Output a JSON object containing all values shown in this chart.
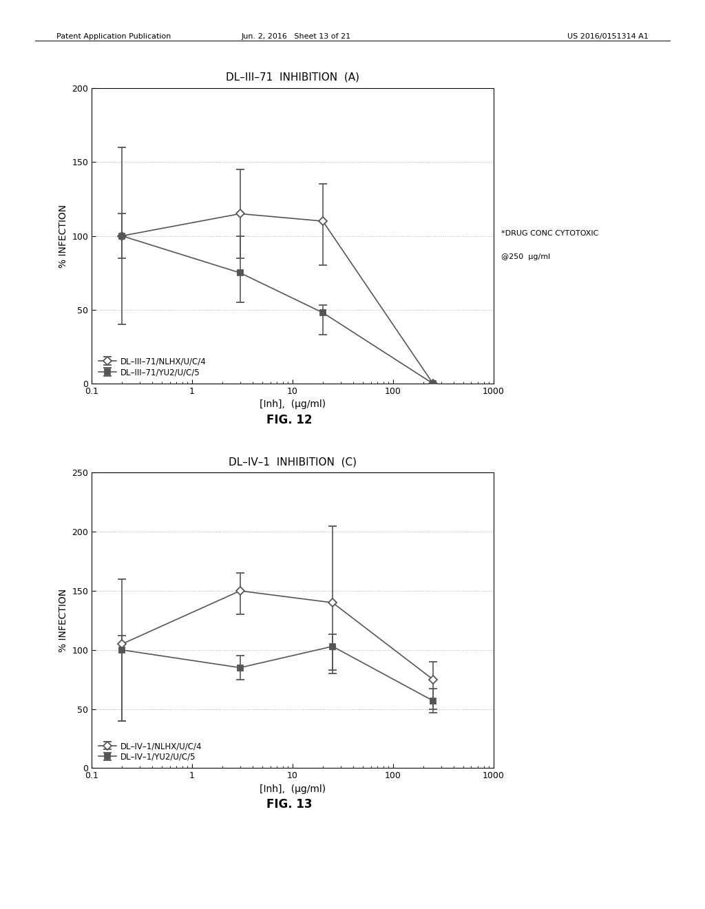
{
  "fig12": {
    "title": "DL–III–71  INHIBITION  (A)",
    "xlabel": "[Inh],  (μg/ml)",
    "ylabel": "% INFECTION",
    "ylim": [
      0,
      200
    ],
    "yticks": [
      0,
      50,
      100,
      150,
      200
    ],
    "xlim": [
      0.1,
      1000
    ],
    "series1": {
      "label": "DL–III–71/NLHX/U/C/4",
      "x": [
        0.2,
        3,
        20,
        250
      ],
      "y": [
        100,
        115,
        110,
        0
      ],
      "yerr_low": [
        15,
        30,
        30,
        0
      ],
      "yerr_high": [
        60,
        30,
        25,
        0
      ],
      "marker": "D",
      "markersize": 6
    },
    "series2": {
      "label": "DL–III–71/YU2/U/C/5",
      "x": [
        0.2,
        3,
        20,
        250
      ],
      "y": [
        100,
        75,
        48,
        0
      ],
      "yerr_low": [
        60,
        20,
        15,
        0
      ],
      "yerr_high": [
        15,
        25,
        5,
        0
      ],
      "marker": "s",
      "markersize": 6
    },
    "annotation_line1": "*DRUG CONC CYTOTOXIC",
    "annotation_line2": "@250  μg/ml",
    "fig_label": "FIG. 12"
  },
  "fig13": {
    "title": "DL–IV–1  INHIBITION  (C)",
    "xlabel": "[Inh],  (μg/ml)",
    "ylabel": "% INFECTION",
    "ylim": [
      0,
      250
    ],
    "yticks": [
      0,
      50,
      100,
      150,
      200,
      250
    ],
    "xlim": [
      0.1,
      1000
    ],
    "series1": {
      "label": "DL–IV–1/NLHX/U/C/4",
      "x": [
        0.2,
        3,
        25,
        250
      ],
      "y": [
        105,
        150,
        140,
        75
      ],
      "yerr_low": [
        65,
        20,
        60,
        25
      ],
      "yerr_high": [
        55,
        15,
        65,
        15
      ],
      "marker": "D",
      "markersize": 6
    },
    "series2": {
      "label": "DL–IV–1/YU2/U/C/5",
      "x": [
        0.2,
        3,
        25,
        250
      ],
      "y": [
        100,
        85,
        103,
        57
      ],
      "yerr_low": [
        60,
        10,
        20,
        10
      ],
      "yerr_high": [
        12,
        10,
        10,
        10
      ],
      "marker": "s",
      "markersize": 6
    },
    "fig_label": "FIG. 13"
  },
  "header_left": "Patent Application Publication",
  "header_mid": "Jun. 2, 2016   Sheet 13 of 21",
  "header_right": "US 2016/0151314 A1",
  "line_color": "#555555",
  "grid_color": "#aaaaaa",
  "plot_bg": "#ffffff",
  "fig_bg": "#ffffff"
}
